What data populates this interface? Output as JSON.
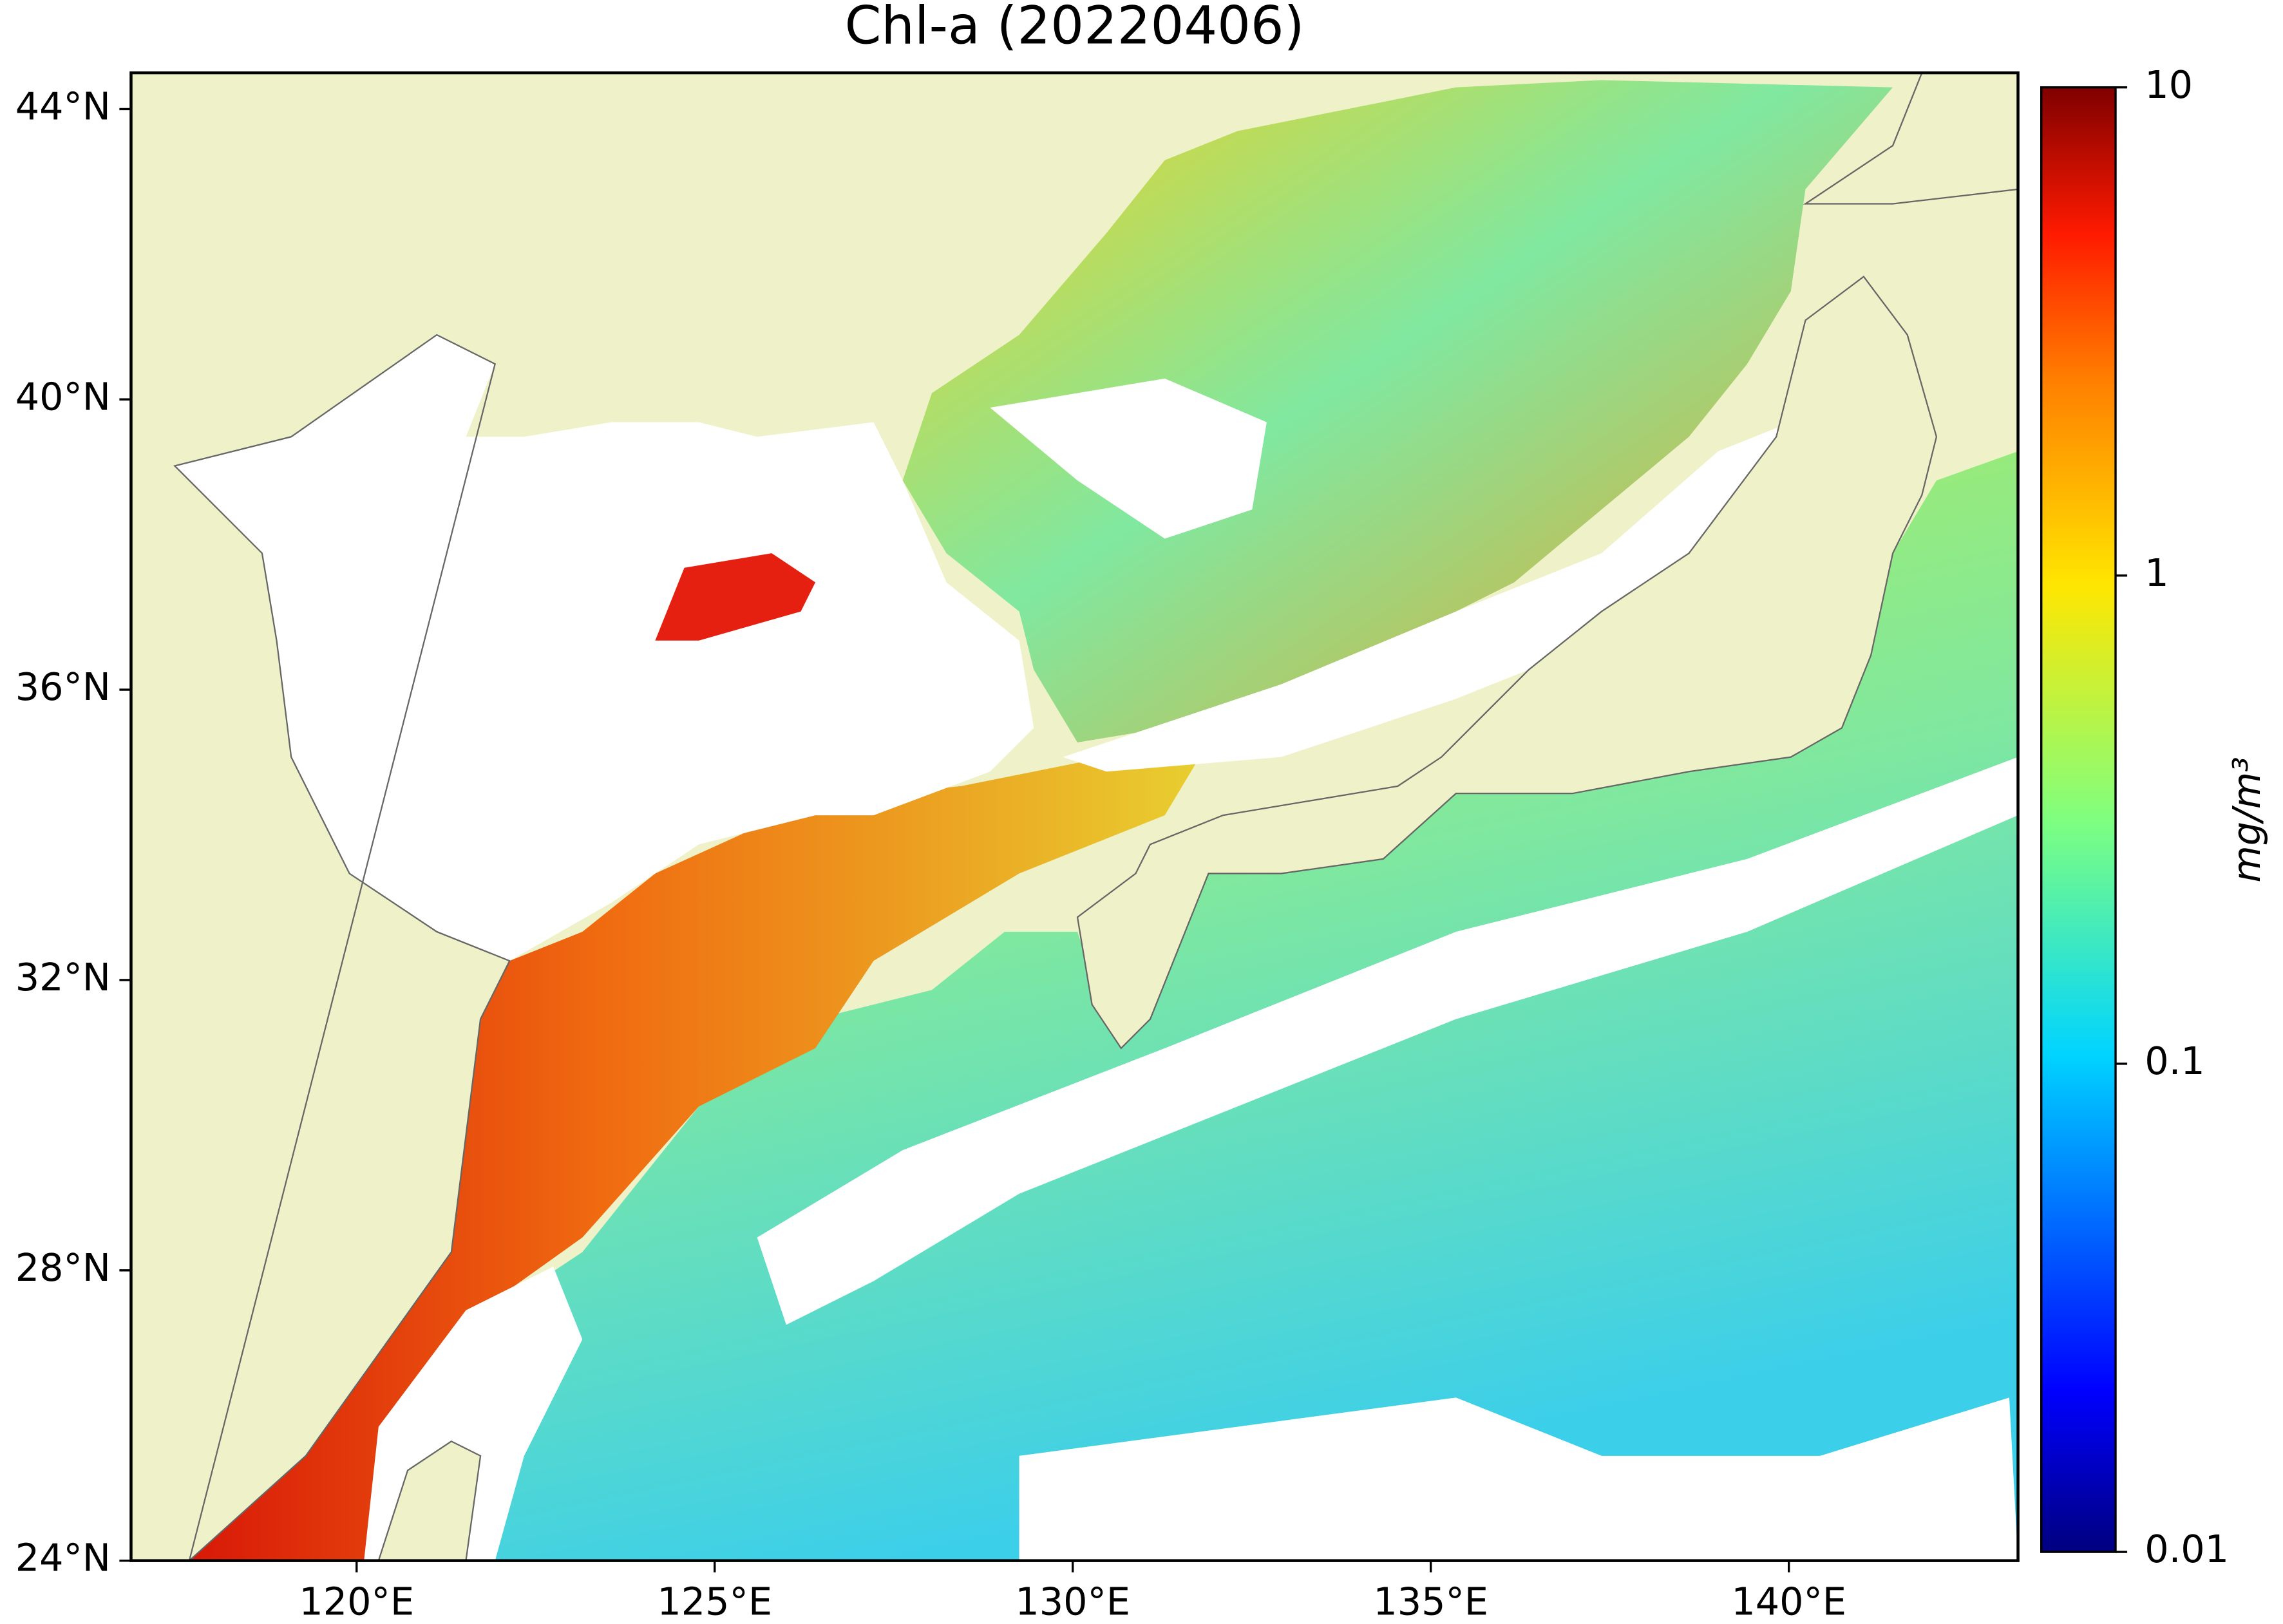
{
  "chart_data": {
    "type": "map",
    "title": "Chl-a (20220406)",
    "xlim": [
      116.85,
      143.2
    ],
    "ylim": [
      24,
      44.5
    ],
    "xticks": [
      {
        "value": 120,
        "label": "120°E"
      },
      {
        "value": 125,
        "label": "125°E"
      },
      {
        "value": 130,
        "label": "130°E"
      },
      {
        "value": 135,
        "label": "135°E"
      },
      {
        "value": 140,
        "label": "140°E"
      }
    ],
    "yticks": [
      {
        "value": 24,
        "label": "24°N"
      },
      {
        "value": 28,
        "label": "28°N"
      },
      {
        "value": 32,
        "label": "32°N"
      },
      {
        "value": 36,
        "label": "36°N"
      },
      {
        "value": 40,
        "label": "40°N"
      },
      {
        "value": 44,
        "label": "44°N"
      }
    ],
    "colorbar": {
      "lim": [
        0.01,
        10
      ],
      "ticks": [
        0.01,
        0.1,
        1,
        10
      ],
      "scale": "log",
      "label": "mg/m³"
    }
  }
}
